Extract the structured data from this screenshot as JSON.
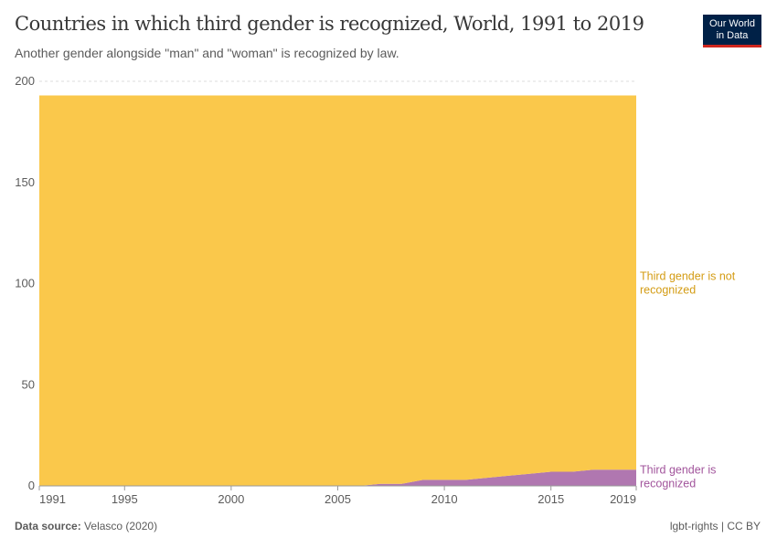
{
  "header": {
    "title": "Countries in which third gender is recognized, World, 1991 to 2019",
    "subtitle": "Another gender alongside \"man\" and \"woman\" is recognized by law.",
    "logo": [
      "Our World",
      "in Data"
    ]
  },
  "footer": {
    "source_label": "Data source:",
    "source": "Velasco (2020)",
    "license": "lgbt-rights | CC BY"
  },
  "chart_data": {
    "type": "area",
    "stacked": true,
    "title": "Countries in which third gender is recognized, World, 1991 to 2019",
    "subtitle": "Another gender alongside \"man\" and \"woman\" is recognized by law.",
    "xlim": [
      1991,
      2019
    ],
    "ylim": [
      0,
      200
    ],
    "x_ticks": [
      1991,
      1995,
      2000,
      2005,
      2010,
      2015,
      2019
    ],
    "y_ticks": [
      0,
      50,
      100,
      150,
      200
    ],
    "grid": "horizontal dashed",
    "x": [
      1991,
      1992,
      1993,
      1994,
      1995,
      1996,
      1997,
      1998,
      1999,
      2000,
      2001,
      2002,
      2003,
      2004,
      2005,
      2006,
      2007,
      2008,
      2009,
      2010,
      2011,
      2012,
      2013,
      2014,
      2015,
      2016,
      2017,
      2018,
      2019
    ],
    "series": [
      {
        "name": "Third gender is recognized",
        "color": "#b077b0",
        "values": [
          0,
          0,
          0,
          0,
          0,
          0,
          0,
          0,
          0,
          0,
          0,
          0,
          0,
          0,
          0,
          0,
          1,
          1,
          3,
          3,
          3,
          4,
          5,
          6,
          7,
          7,
          8,
          8,
          8
        ]
      },
      {
        "name": "Third gender is not recognized",
        "color": "#fac84b",
        "values": [
          193,
          193,
          193,
          193,
          193,
          193,
          193,
          193,
          193,
          193,
          193,
          193,
          193,
          193,
          193,
          193,
          192,
          192,
          190,
          190,
          190,
          189,
          188,
          187,
          186,
          186,
          185,
          185,
          185
        ]
      }
    ],
    "label_colors": {
      "Third gender is recognized": "#a2559c",
      "Third gender is not recognized": "#d49c14"
    },
    "legend_placement": "right inline"
  }
}
